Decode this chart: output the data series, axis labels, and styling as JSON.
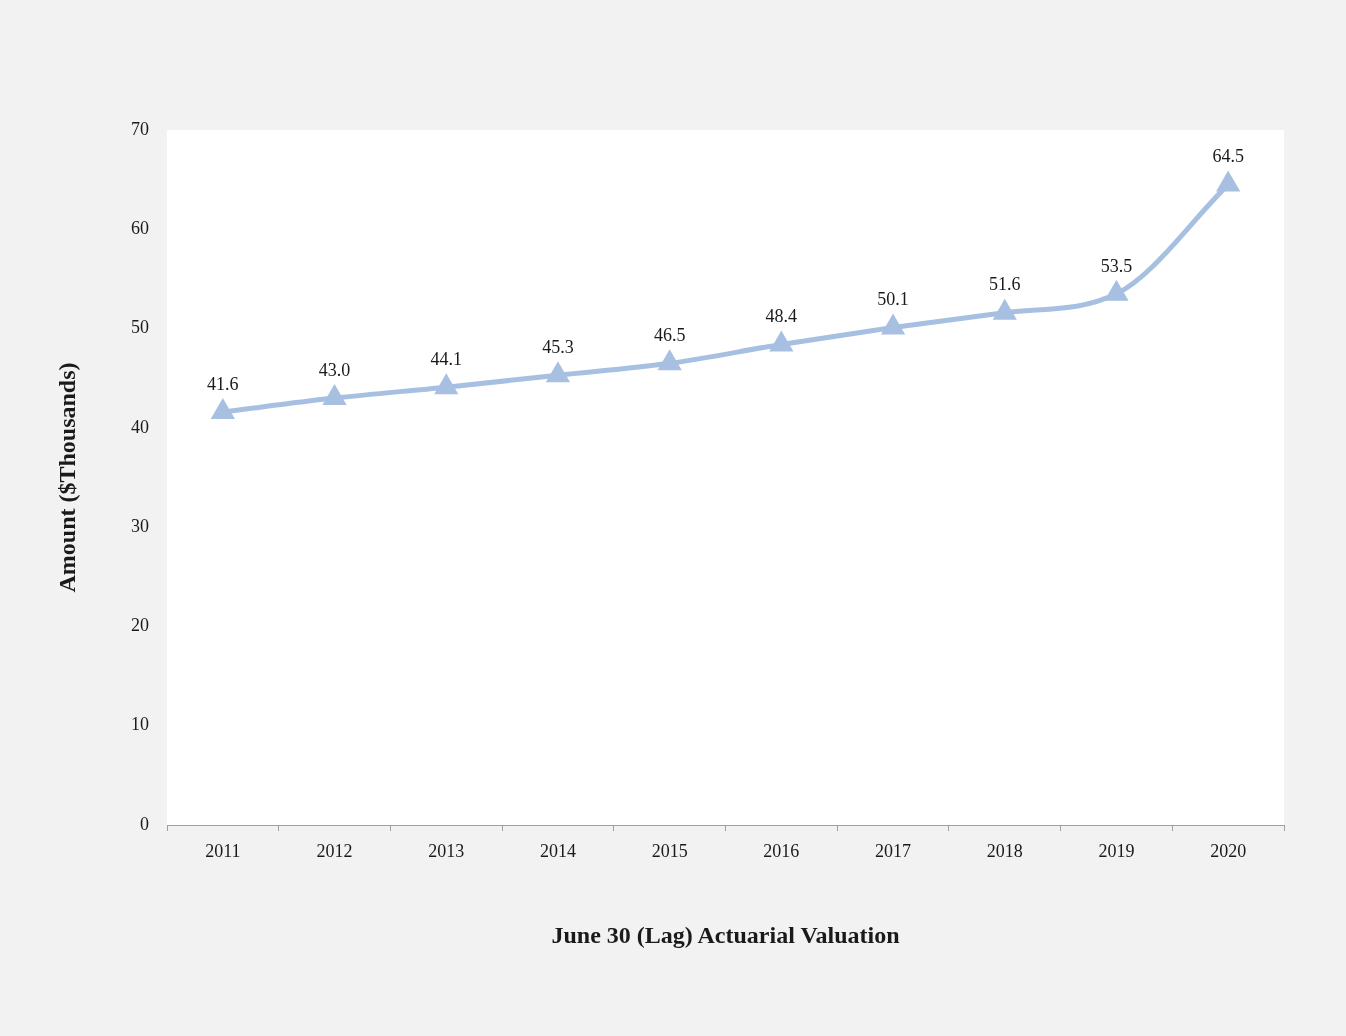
{
  "chart_data": {
    "type": "line",
    "xlabel": "June 30 (Lag) Actuarial Valuation",
    "ylabel": "Amount ($Thousands)",
    "categories": [
      "2011",
      "2012",
      "2013",
      "2014",
      "2015",
      "2016",
      "2017",
      "2018",
      "2019",
      "2020"
    ],
    "series": [
      {
        "color": "#a7c0e2",
        "values": [
          41.6,
          43.0,
          44.1,
          45.3,
          46.5,
          48.4,
          50.1,
          51.6,
          53.5,
          64.5
        ],
        "value_labels": [
          "41.6",
          "43.0",
          "44.1",
          "45.3",
          "46.5",
          "48.4",
          "50.1",
          "51.6",
          "53.5",
          "64.5"
        ]
      }
    ],
    "ylim": [
      0,
      70
    ],
    "yticks": [
      0,
      10,
      20,
      30,
      40,
      50,
      60,
      70
    ],
    "marker": "triangle",
    "line_style": "solid",
    "grid": false
  }
}
